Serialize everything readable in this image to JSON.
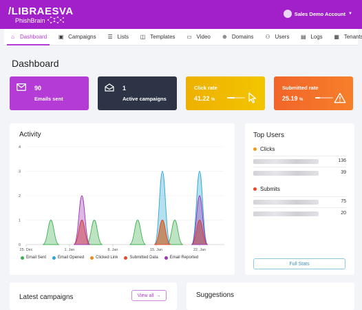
{
  "header": {
    "logo_main": "/LIBRAESVA",
    "logo_sub": "PhishBrain",
    "account_label": "Sales Demo Account"
  },
  "nav": [
    {
      "label": "Dashboard",
      "icon": "home-icon",
      "active": true
    },
    {
      "label": "Campaigns",
      "icon": "campaign-icon"
    },
    {
      "label": "Lists",
      "icon": "list-icon"
    },
    {
      "label": "Templates",
      "icon": "template-icon"
    },
    {
      "label": "Video",
      "icon": "video-icon"
    },
    {
      "label": "Domains",
      "icon": "globe-icon"
    },
    {
      "label": "Users",
      "icon": "users-icon"
    },
    {
      "label": "Logs",
      "icon": "log-icon"
    },
    {
      "label": "Tenants",
      "icon": "tenant-icon"
    }
  ],
  "page_title": "Dashboard",
  "stats": {
    "emails_sent": {
      "value": "90",
      "label": "Emails sent",
      "color": "#b43bd6"
    },
    "active_campaigns": {
      "value": "1",
      "label": "Active campaigns",
      "color": "#2c3446"
    },
    "click_rate": {
      "label": "Click rate",
      "value": "41.22",
      "unit": "%",
      "fraction": 0.41,
      "color": "#eeb000"
    },
    "submitted_rate": {
      "label": "Submitted rate",
      "value": "25.19",
      "unit": "%",
      "fraction": 0.25,
      "color": "#f2652a"
    }
  },
  "activity": {
    "title": "Activity",
    "legend": [
      {
        "name": "Email Sent",
        "color": "#3fb04f"
      },
      {
        "name": "Email Opened",
        "color": "#29a6d4"
      },
      {
        "name": "Clicked Link",
        "color": "#ee8a16"
      },
      {
        "name": "Submitted Data",
        "color": "#e8492d"
      },
      {
        "name": "Email Reported",
        "color": "#9c34b5"
      }
    ]
  },
  "chart_data": {
    "type": "area",
    "title": "Activity",
    "xlabel": "",
    "ylabel": "",
    "x_ticks": [
      "25. Dec",
      "1. Jan",
      "8. Jan",
      "15. Jan",
      "22. Jan"
    ],
    "x_tick_days": [
      0,
      7,
      14,
      21,
      28
    ],
    "ylim": [
      0,
      4
    ],
    "y_ticks": [
      0,
      1,
      2,
      3,
      4
    ],
    "grid": true,
    "legend_position": "bottom",
    "series": [
      {
        "name": "Email Sent",
        "color": "#3fb04f",
        "points": [
          [
            4,
            1
          ],
          [
            11,
            1
          ],
          [
            18,
            1
          ],
          [
            22,
            1
          ],
          [
            24,
            1
          ],
          [
            28,
            1
          ]
        ]
      },
      {
        "name": "Email Opened",
        "color": "#29a6d4",
        "points": [
          [
            22,
            3
          ],
          [
            28,
            3
          ]
        ]
      },
      {
        "name": "Clicked Link",
        "color": "#ee8a16",
        "points": [
          [
            9,
            1
          ],
          [
            22,
            1
          ],
          [
            28,
            1
          ]
        ]
      },
      {
        "name": "Submitted Data",
        "color": "#e8492d",
        "points": [
          [
            9,
            1
          ],
          [
            22,
            1
          ],
          [
            28,
            1
          ]
        ]
      },
      {
        "name": "Email Reported",
        "color": "#9c34b5",
        "points": [
          [
            9,
            2
          ],
          [
            28,
            2
          ]
        ]
      }
    ]
  },
  "top_users": {
    "title": "Top Users",
    "clicks_label": "Clicks",
    "clicks_color": "#ee9a16",
    "clicks": [
      {
        "value": "136"
      },
      {
        "value": "39"
      }
    ],
    "submits_label": "Submits",
    "submits_color": "#e8492d",
    "submits": [
      {
        "value": "75"
      },
      {
        "value": "20"
      }
    ],
    "full_stats_label": "Full Stats"
  },
  "latest_campaigns": {
    "title": "Latest campaigns",
    "view_all_label": "View all"
  },
  "suggestions": {
    "title": "Suggestions"
  }
}
